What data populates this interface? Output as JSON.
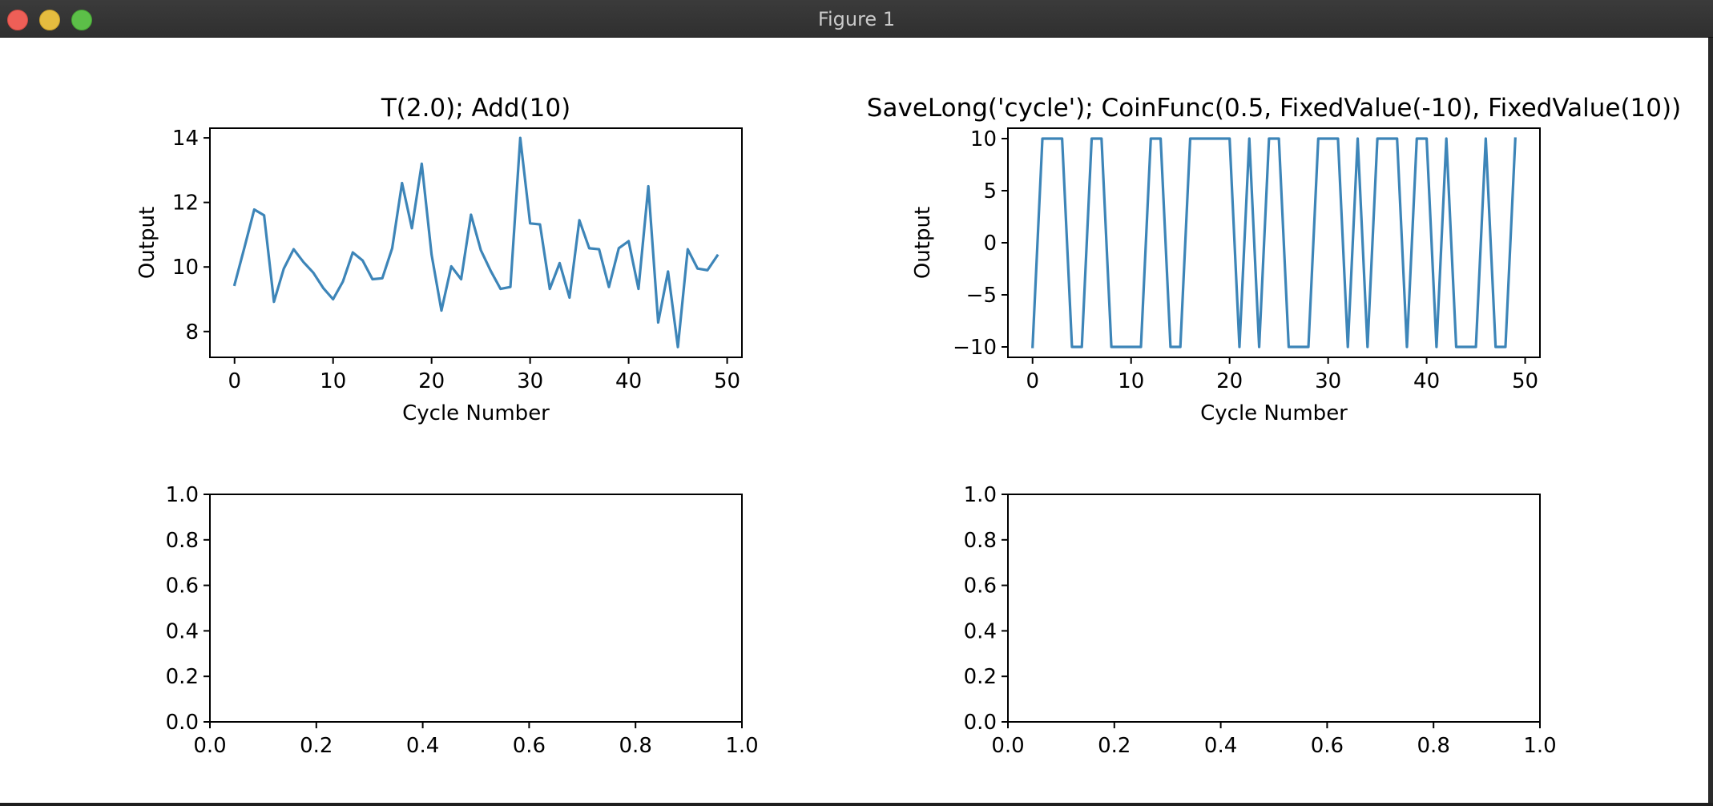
{
  "window": {
    "title": "Figure 1"
  },
  "chart_data": [
    {
      "type": "line",
      "title": "T(2.0); Add(10)",
      "xlabel": "Cycle Number",
      "ylabel": "Output",
      "xlim": [
        -2.5,
        51.5
      ],
      "ylim": [
        7.2,
        14.3
      ],
      "xticks": [
        0,
        10,
        20,
        30,
        40,
        50
      ],
      "yticks": [
        8,
        10,
        12,
        14
      ],
      "color": "#3d85b8",
      "x": [
        0,
        1,
        2,
        3,
        4,
        5,
        6,
        7,
        8,
        9,
        10,
        11,
        12,
        13,
        14,
        15,
        16,
        17,
        18,
        19,
        20,
        21,
        22,
        23,
        24,
        25,
        26,
        27,
        28,
        29,
        30,
        31,
        32,
        33,
        34,
        35,
        36,
        37,
        38,
        39,
        40,
        41,
        42,
        43,
        44,
        45,
        46,
        47,
        48,
        49
      ],
      "values": [
        9.45,
        10.6,
        11.78,
        11.6,
        8.92,
        9.95,
        10.55,
        10.15,
        9.82,
        9.35,
        9.0,
        9.55,
        10.45,
        10.2,
        9.62,
        9.65,
        10.58,
        12.6,
        11.2,
        13.2,
        10.38,
        8.65,
        10.02,
        9.62,
        11.62,
        10.52,
        9.88,
        9.32,
        9.38,
        14.0,
        11.35,
        11.32,
        9.32,
        10.12,
        9.05,
        11.45,
        10.58,
        10.55,
        9.38,
        10.58,
        10.8,
        9.32,
        12.5,
        8.28,
        9.86,
        7.52,
        10.55,
        9.95,
        9.9,
        10.35
      ],
      "grid": false
    },
    {
      "type": "line",
      "title": "SaveLong('cycle'); CoinFunc(0.5, FixedValue(-10), FixedValue(10))",
      "xlabel": "Cycle Number",
      "ylabel": "Output",
      "xlim": [
        -2.5,
        51.5
      ],
      "ylim": [
        -11,
        11
      ],
      "xticks": [
        0,
        10,
        20,
        30,
        40,
        50
      ],
      "yticks": [
        -10,
        -5,
        0,
        5,
        10
      ],
      "color": "#3d85b8",
      "x": [
        0,
        1,
        2,
        3,
        4,
        5,
        6,
        7,
        8,
        9,
        10,
        11,
        12,
        13,
        14,
        15,
        16,
        17,
        18,
        19,
        20,
        21,
        22,
        23,
        24,
        25,
        26,
        27,
        28,
        29,
        30,
        31,
        32,
        33,
        34,
        35,
        36,
        37,
        38,
        39,
        40,
        41,
        42,
        43,
        44,
        45,
        46,
        47,
        48,
        49
      ],
      "values": [
        -10,
        10,
        10,
        10,
        -10,
        -10,
        10,
        10,
        -10,
        -10,
        -10,
        -10,
        10,
        10,
        -10,
        -10,
        10,
        10,
        10,
        10,
        10,
        -10,
        10,
        -10,
        10,
        10,
        -10,
        -10,
        -10,
        10,
        10,
        10,
        -10,
        10,
        -10,
        10,
        10,
        10,
        -10,
        10,
        10,
        -10,
        10,
        -10,
        -10,
        -10,
        10,
        -10,
        -10,
        10
      ],
      "grid": false
    },
    {
      "type": "line",
      "title": "",
      "xlabel": "",
      "ylabel": "",
      "xlim": [
        0,
        1
      ],
      "ylim": [
        0,
        1
      ],
      "xticks": [
        "0.0",
        "0.2",
        "0.4",
        "0.6",
        "0.8",
        "1.0"
      ],
      "yticks": [
        "0.0",
        "0.2",
        "0.4",
        "0.6",
        "0.8",
        "1.0"
      ],
      "values": [],
      "grid": false
    },
    {
      "type": "line",
      "title": "",
      "xlabel": "",
      "ylabel": "",
      "xlim": [
        0,
        1
      ],
      "ylim": [
        0,
        1
      ],
      "xticks": [
        "0.0",
        "0.2",
        "0.4",
        "0.6",
        "0.8",
        "1.0"
      ],
      "yticks": [
        "0.0",
        "0.2",
        "0.4",
        "0.6",
        "0.8",
        "1.0"
      ],
      "values": [],
      "grid": false
    }
  ]
}
